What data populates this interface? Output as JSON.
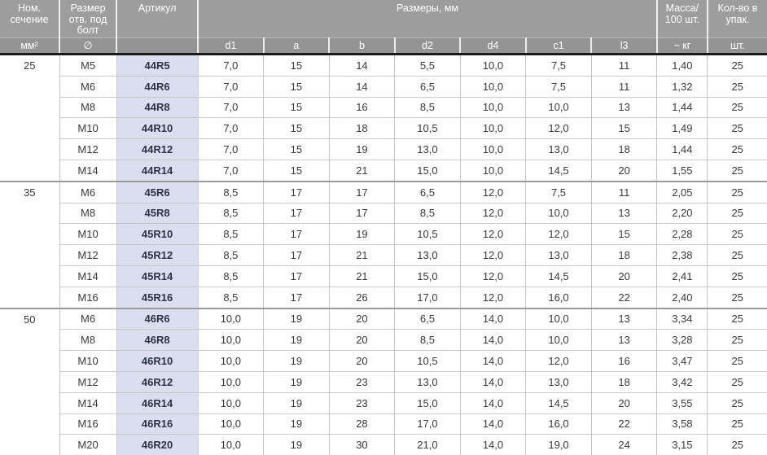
{
  "header": {
    "nominal_section": "Ном. сечение",
    "bolt_hole_size": "Размер отв. под болт",
    "article": "Артикул",
    "dimensions_mm": "Размеры, мм",
    "mass_per_100": "Масса/ 100 шт.",
    "qty_per_pack": "Кол-во в упак."
  },
  "subheader": {
    "mm2": "мм²",
    "diameter": "∅",
    "article_blank": "",
    "dims": [
      "d1",
      "a",
      "b",
      "d2",
      "d4",
      "c1",
      "l3"
    ],
    "mass_kg": "~ кг",
    "pcs": "шт."
  },
  "colors": {
    "header_bg": "#9d9d9d",
    "subheader_bg": "#949494",
    "article_bg": "#dbdeee",
    "article_text": "#2b3147",
    "grid_line": "#c8c8c8",
    "group_line": "#9a9a9a",
    "header_divider": "#1a1a1a"
  },
  "groups": [
    {
      "section": "25",
      "rows": [
        {
          "size": "M5",
          "article": "44R5",
          "dims": [
            "7,0",
            "15",
            "14",
            "5,5",
            "10,0",
            "7,5",
            "11"
          ],
          "mass": "1,40",
          "qty": "25"
        },
        {
          "size": "M6",
          "article": "44R6",
          "dims": [
            "7,0",
            "15",
            "14",
            "6,5",
            "10,0",
            "7,5",
            "11"
          ],
          "mass": "1,32",
          "qty": "25"
        },
        {
          "size": "M8",
          "article": "44R8",
          "dims": [
            "7,0",
            "15",
            "16",
            "8,5",
            "10,0",
            "10,0",
            "13"
          ],
          "mass": "1,44",
          "qty": "25"
        },
        {
          "size": "M10",
          "article": "44R10",
          "dims": [
            "7,0",
            "15",
            "18",
            "10,5",
            "10,0",
            "12,0",
            "15"
          ],
          "mass": "1,49",
          "qty": "25"
        },
        {
          "size": "M12",
          "article": "44R12",
          "dims": [
            "7,0",
            "15",
            "19",
            "13,0",
            "10,0",
            "13,0",
            "18"
          ],
          "mass": "1,44",
          "qty": "25"
        },
        {
          "size": "M14",
          "article": "44R14",
          "dims": [
            "7,0",
            "15",
            "21",
            "15,0",
            "10,0",
            "14,5",
            "20"
          ],
          "mass": "1,55",
          "qty": "25"
        }
      ]
    },
    {
      "section": "35",
      "rows": [
        {
          "size": "M6",
          "article": "45R6",
          "dims": [
            "8,5",
            "17",
            "17",
            "6,5",
            "12,0",
            "7,5",
            "11"
          ],
          "mass": "2,05",
          "qty": "25"
        },
        {
          "size": "M8",
          "article": "45R8",
          "dims": [
            "8,5",
            "17",
            "17",
            "8,5",
            "12,0",
            "10,0",
            "13"
          ],
          "mass": "2,20",
          "qty": "25"
        },
        {
          "size": "M10",
          "article": "45R10",
          "dims": [
            "8,5",
            "17",
            "19",
            "10,5",
            "12,0",
            "12,0",
            "15"
          ],
          "mass": "2,28",
          "qty": "25"
        },
        {
          "size": "M12",
          "article": "45R12",
          "dims": [
            "8,5",
            "17",
            "21",
            "13,0",
            "12,0",
            "13,0",
            "18"
          ],
          "mass": "2,38",
          "qty": "25"
        },
        {
          "size": "M14",
          "article": "45R14",
          "dims": [
            "8,5",
            "17",
            "21",
            "15,0",
            "12,0",
            "14,5",
            "20"
          ],
          "mass": "2,41",
          "qty": "25"
        },
        {
          "size": "M16",
          "article": "45R16",
          "dims": [
            "8,5",
            "17",
            "26",
            "17,0",
            "12,0",
            "16,0",
            "22"
          ],
          "mass": "2,40",
          "qty": "25"
        }
      ]
    },
    {
      "section": "50",
      "rows": [
        {
          "size": "M6",
          "article": "46R6",
          "dims": [
            "10,0",
            "19",
            "20",
            "6,5",
            "14,0",
            "10,0",
            "13"
          ],
          "mass": "3,34",
          "qty": "25"
        },
        {
          "size": "M8",
          "article": "46R8",
          "dims": [
            "10,0",
            "19",
            "20",
            "8,5",
            "14,0",
            "10,0",
            "13"
          ],
          "mass": "3,28",
          "qty": "25"
        },
        {
          "size": "M10",
          "article": "46R10",
          "dims": [
            "10,0",
            "19",
            "20",
            "10,5",
            "14,0",
            "12,0",
            "16"
          ],
          "mass": "3,47",
          "qty": "25"
        },
        {
          "size": "M12",
          "article": "46R12",
          "dims": [
            "10,0",
            "19",
            "23",
            "13,0",
            "14,0",
            "13,0",
            "18"
          ],
          "mass": "3,42",
          "qty": "25"
        },
        {
          "size": "M14",
          "article": "46R14",
          "dims": [
            "10,0",
            "19",
            "23",
            "15,0",
            "14,0",
            "14,5",
            "20"
          ],
          "mass": "3,55",
          "qty": "25"
        },
        {
          "size": "M16",
          "article": "46R16",
          "dims": [
            "10,0",
            "19",
            "28",
            "17,0",
            "14,0",
            "16,0",
            "22"
          ],
          "mass": "3,58",
          "qty": "25"
        },
        {
          "size": "M20",
          "article": "46R20",
          "dims": [
            "10,0",
            "19",
            "30",
            "21,0",
            "14,0",
            "19,0",
            "24"
          ],
          "mass": "3,15",
          "qty": "25"
        }
      ]
    }
  ]
}
